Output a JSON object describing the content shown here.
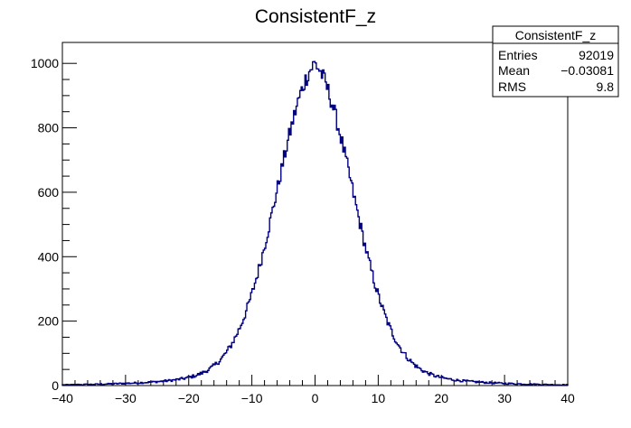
{
  "chart_data": {
    "type": "histogram",
    "title": "ConsistentF_z",
    "xlabel": "",
    "ylabel": "",
    "xlim": [
      -40,
      40
    ],
    "ylim": [
      0,
      1065
    ],
    "x_ticks": [
      "−40",
      "−30",
      "−20",
      "−10",
      "0",
      "10",
      "20",
      "30",
      "40"
    ],
    "y_ticks": [
      "0",
      "200",
      "400",
      "600",
      "800",
      "1000"
    ],
    "bins": 400,
    "shape": {
      "peak_center": -0.03081,
      "peak_value": 1000,
      "description": "sharp central peak near zero with exponential-like tails"
    },
    "stats_box": {
      "header": "ConsistentF_z",
      "rows": [
        {
          "label": "Entries",
          "value": "92019"
        },
        {
          "label": "Mean",
          "value": "−0.03081"
        },
        {
          "label": "RMS",
          "value": "9.8"
        }
      ]
    },
    "colors": {
      "line": "#000080",
      "frame": "#000000",
      "background": "#ffffff"
    }
  }
}
